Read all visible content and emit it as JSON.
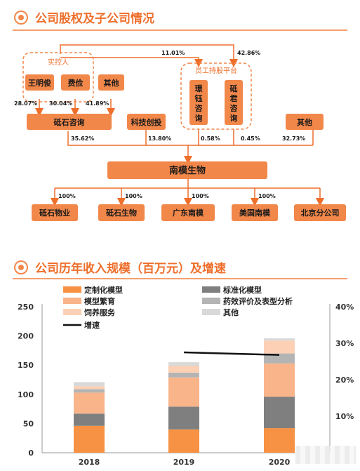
{
  "section1": {
    "title": "公司股权及子公司情况"
  },
  "org": {
    "controller_group": "实控人",
    "wang": "王明俊",
    "fei": "费俭",
    "other_top": "其他",
    "esop_group": "员工持股平台",
    "esop1": "璟钰咨询",
    "esop2": "砥君咨询",
    "dishi": "砥石咨询",
    "keji": "科技创投",
    "other_mid": "其他",
    "nanmo": "南模生物",
    "pct_11": "11.01%",
    "pct_4286": "42.86%",
    "pct_2807": "28.07%",
    "pct_3004": "30.04%",
    "pct_4189": "41.89%",
    "pct_3562": "35.62%",
    "pct_1380": "13.80%",
    "pct_058": "0.58%",
    "pct_045": "0.45%",
    "pct_3273": "32.73%",
    "subs": [
      {
        "name": "砥石物业",
        "pct": "100%"
      },
      {
        "name": "砥石生物",
        "pct": "100%"
      },
      {
        "name": "广东南模",
        "pct": "100%"
      },
      {
        "name": "美国南模",
        "pct": "100%"
      },
      {
        "name": "北京分公司",
        "pct": ""
      }
    ]
  },
  "section2": {
    "title": "公司历年收入规模（百万元）及增速"
  },
  "chart_data": {
    "type": "bar",
    "stacked": true,
    "categories": [
      "2018",
      "2019",
      "2020"
    ],
    "series": [
      {
        "name": "定制化模型",
        "color": "#f79244",
        "values": [
          46,
          40,
          42
        ]
      },
      {
        "name": "标准化模型",
        "color": "#7f7f7f",
        "values": [
          21,
          39,
          54
        ]
      },
      {
        "name": "模型繁育",
        "color": "#f9b48a",
        "values": [
          36,
          50,
          57
        ]
      },
      {
        "name": "药效评价及表型分析",
        "color": "#b4b4b4",
        "values": [
          6,
          8,
          17
        ]
      },
      {
        "name": "饲养服务",
        "color": "#fcd0b4",
        "values": [
          5,
          12,
          22
        ]
      },
      {
        "name": "其他",
        "color": "#d9d9d9",
        "values": [
          7,
          6,
          4
        ]
      }
    ],
    "line": {
      "name": "增速",
      "color": "#111111",
      "values": [
        null,
        27.5,
        26.8
      ]
    },
    "ylim": [
      0,
      250
    ],
    "yticks": [
      0,
      50,
      100,
      150,
      200,
      250
    ],
    "y2lim": [
      0,
      40
    ],
    "y2ticks": [
      "",
      "10%",
      "20%",
      "30%",
      "40%"
    ],
    "legend_position": "top"
  }
}
